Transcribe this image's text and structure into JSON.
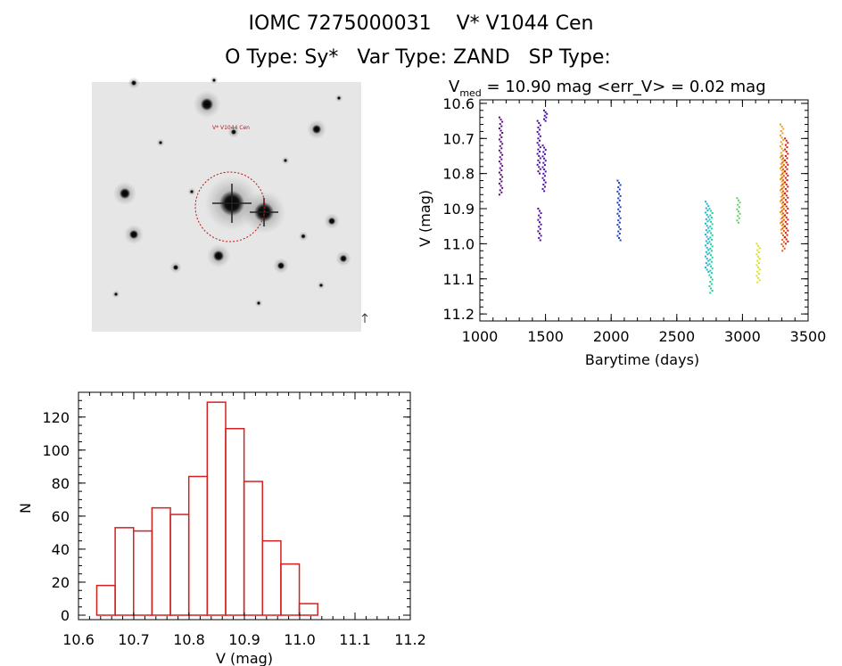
{
  "header": {
    "line1": "IOMC 7275000031    V* V1044 Cen",
    "line2": "O Type: Sy*   Var Type: ZAND   SP Type: "
  },
  "thumbnail": {
    "label_top_left": "",
    "label_target": "V* V1044 Cen",
    "label_bottom": ""
  },
  "chart_data": [
    {
      "type": "scatter",
      "title": "V_med = 10.90 mag <err_V> = 0.02 mag",
      "title_main": "V",
      "title_sub": "med",
      "title_rest": " = 10.90 mag <err_V> = 0.02 mag",
      "xlabel": "Barytime (days)",
      "ylabel": "V (mag)",
      "xlim": [
        1000,
        3500
      ],
      "ylim": [
        11.22,
        10.59
      ],
      "y_inverted": true,
      "xticks": [
        1000,
        1500,
        2000,
        2500,
        3000,
        3500
      ],
      "yticks": [
        10.6,
        10.7,
        10.8,
        10.9,
        11.0,
        11.1,
        11.2
      ],
      "ytick_labels": [
        "10.6",
        "10.7",
        "10.8",
        "10.9",
        "11.0",
        "11.1",
        "11.2"
      ],
      "groups": [
        {
          "x": 1160,
          "ymin": 10.64,
          "ymax": 10.86,
          "color": "#5a0e7a"
        },
        {
          "x": 1450,
          "ymin": 10.65,
          "ymax": 10.8,
          "color": "#4b0fa0"
        },
        {
          "x": 1455,
          "ymin": 10.9,
          "ymax": 10.99,
          "color": "#4b0fa0"
        },
        {
          "x": 1490,
          "ymin": 10.72,
          "ymax": 10.85,
          "color": "#4a10b0"
        },
        {
          "x": 1500,
          "ymin": 10.62,
          "ymax": 10.65,
          "color": "#4a10b0"
        },
        {
          "x": 2060,
          "ymin": 10.82,
          "ymax": 10.99,
          "color": "#2040c0"
        },
        {
          "x": 2730,
          "ymin": 10.88,
          "ymax": 11.08,
          "color": "#20b0d8"
        },
        {
          "x": 2760,
          "ymin": 10.9,
          "ymax": 11.14,
          "color": "#20d0a0"
        },
        {
          "x": 2970,
          "ymin": 10.87,
          "ymax": 10.94,
          "color": "#60d060"
        },
        {
          "x": 3120,
          "ymin": 11.0,
          "ymax": 11.11,
          "color": "#d8e020"
        },
        {
          "x": 3300,
          "ymin": 10.66,
          "ymax": 10.96,
          "color": "#f0a020"
        },
        {
          "x": 3310,
          "ymin": 10.75,
          "ymax": 11.02,
          "color": "#e06010"
        },
        {
          "x": 3335,
          "ymin": 10.7,
          "ymax": 11.0,
          "color": "#d02010"
        }
      ]
    },
    {
      "type": "bar",
      "title": "",
      "xlabel": "V (mag)",
      "ylabel": "N",
      "xlim": [
        10.6,
        11.2
      ],
      "ylim": [
        0,
        135
      ],
      "xticks": [
        10.6,
        10.7,
        10.8,
        10.9,
        11.0,
        11.1,
        11.2
      ],
      "xtick_labels": [
        "10.6",
        "10.7",
        "10.8",
        "10.9",
        "11.0",
        "11.1",
        "11.2"
      ],
      "yticks": [
        0,
        20,
        40,
        60,
        80,
        100,
        120
      ],
      "bin_width": 0.0333,
      "bin_start": 10.633,
      "values": [
        18,
        53,
        51,
        65,
        61,
        84,
        129,
        113,
        81,
        45,
        31,
        7
      ],
      "color": "#d42020"
    }
  ]
}
